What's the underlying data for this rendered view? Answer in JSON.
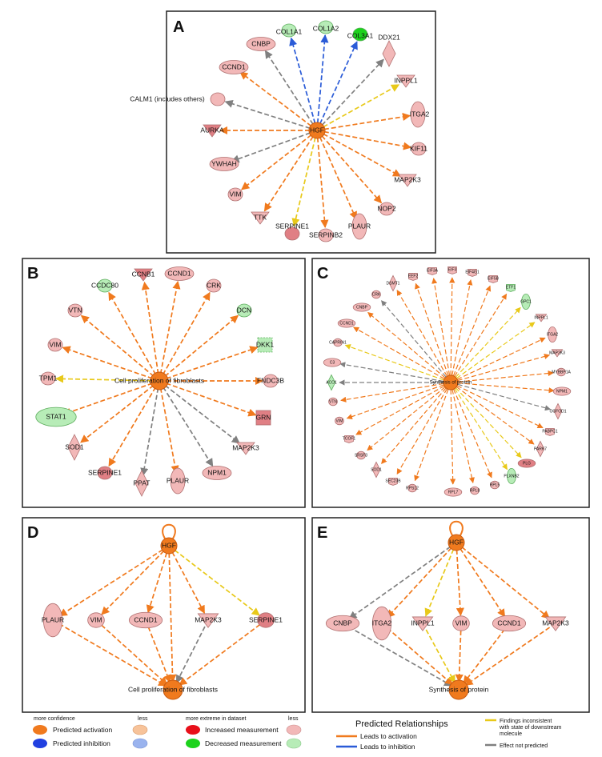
{
  "panels": {
    "A": {
      "letter": "A",
      "center": "HGF",
      "nodes": [
        "COL1A1",
        "COL1A2",
        "COL3A1",
        "DDX21",
        "INPPL1",
        "ITGA2",
        "KIF11",
        "MAP2K3",
        "NOP2",
        "PLAUR",
        "SERPINB2",
        "SERPINE1",
        "TTK",
        "VIM",
        "YWHAH",
        "AURKA",
        "CALM1 (includes others)",
        "CCND1",
        "CNBP"
      ]
    },
    "B": {
      "letter": "B",
      "center": "Cell proliferation of fibroblasts",
      "nodes": [
        "CCNB1",
        "CCND1",
        "CRK",
        "DCN",
        "DKK1",
        "FNDC3B",
        "GRN",
        "MAP2K3",
        "NPM1",
        "PLAUR",
        "PPAT",
        "SERPINE1",
        "SOD1",
        "STAT1",
        "TPM1",
        "VIM",
        "VTN",
        "CCDC80"
      ]
    },
    "C": {
      "letter": "C",
      "center": "Synthesis of protein",
      "nodes": [
        "EIF3A",
        "EIF3",
        "EIF4G1",
        "EIF5B",
        "ETF1",
        "GPC1",
        "INPPL1",
        "ITGA2",
        "MAP2K3",
        "MYBBP1A",
        "NPM1",
        "OGFOD1",
        "PABPC1",
        "PARK7",
        "PLG",
        "PLXNB2",
        "RPL5",
        "RPL8",
        "RPL7",
        "RPS12",
        "SEC23B",
        "SOD1",
        "SRSF3",
        "TCOF1",
        "VIM",
        "VTN",
        "ACO1",
        "C3",
        "CAPRIN1",
        "CCND1",
        "CNBP",
        "CRK",
        "DSMT1",
        "EEF2"
      ]
    },
    "D": {
      "letter": "D",
      "top": "HGF",
      "bottom": "Cell proliferation of fibroblasts",
      "nodes": [
        "PLAUR",
        "VIM",
        "CCND1",
        "MAP2K3",
        "SERPINE1"
      ]
    },
    "E": {
      "letter": "E",
      "top": "HGF",
      "bottom": "Synthesis of protein",
      "nodes": [
        "CNBP",
        "ITGA2",
        "INPPL1",
        "VIM",
        "CCND1",
        "MAP2K3"
      ]
    }
  },
  "legend": {
    "more_confidence": "more confidence",
    "less1": "less",
    "predicted_activation": "Predicted activation",
    "predicted_inhibition": "Predicted inhibition",
    "more_extreme": "more extreme in dataset",
    "less2": "less",
    "increased": "Increased measurement",
    "decreased": "Decreased measurement",
    "relationships_title": "Predicted Relationships",
    "leads_activation": "Leads to activation",
    "leads_inhibition": "Leads to inhibition",
    "findings_1": "Findings inconsistent",
    "findings_2": "with state of downstream",
    "findings_3": "molecule",
    "effect_not_predicted": "Effect not predicted"
  },
  "colors": {
    "activation": "#f07a1e",
    "activation_light": "#f7c39a",
    "inhibition": "#2140e0",
    "inhibition_light": "#9ab3ee",
    "increased": "#e8101a",
    "increased_light": "#f2b8b8",
    "decreased": "#1cd21c",
    "decreased_light": "#b7ecb7",
    "rel_activation": "#f07a1e",
    "rel_inhibition": "#2a5bd7",
    "rel_inconsistent": "#e8c91a",
    "rel_none": "#808080"
  }
}
